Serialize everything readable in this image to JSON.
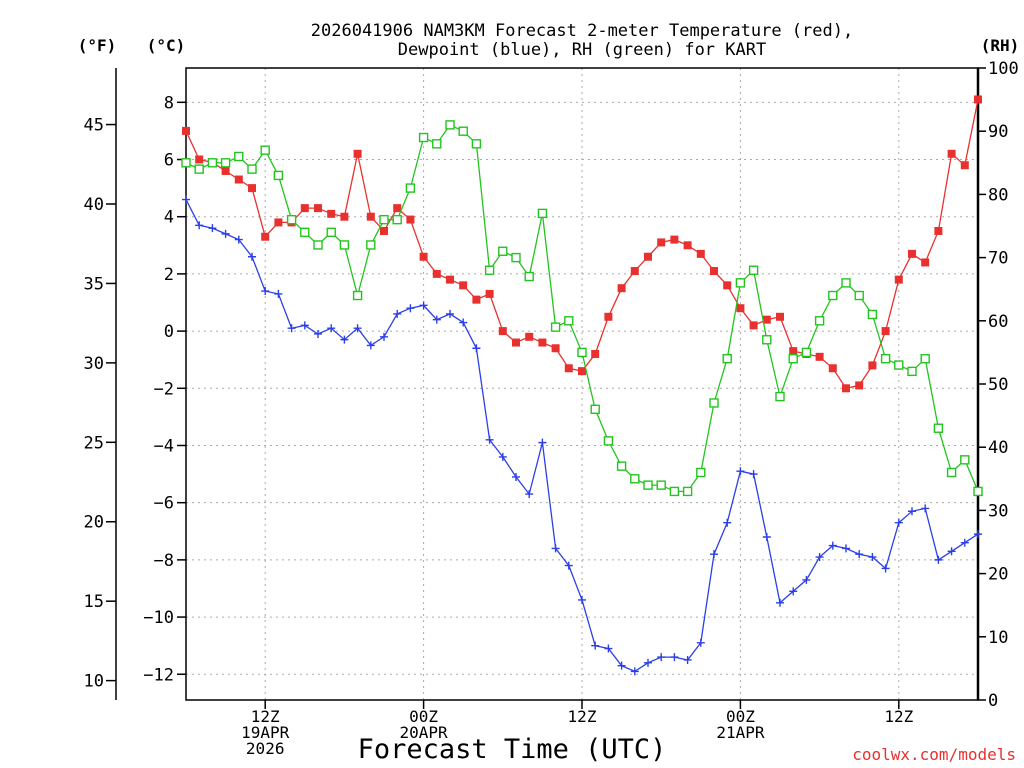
{
  "chart_data": {
    "type": "line",
    "title_line1": "2026041906 NAM3KM Forecast 2-meter Temperature (red),",
    "title_line2": "Dewpoint (blue), RH (green) for KART",
    "units": {
      "left_outer": "(°F)",
      "left_inner": "(°C)",
      "right": "(RH)"
    },
    "xlabel": "Forecast Time (UTC)",
    "credit": "coolwx.com/models",
    "x_hours": [
      0,
      1,
      2,
      3,
      4,
      5,
      6,
      7,
      8,
      9,
      10,
      11,
      12,
      13,
      14,
      15,
      16,
      17,
      18,
      19,
      20,
      21,
      22,
      23,
      24,
      25,
      26,
      27,
      28,
      29,
      30,
      31,
      32,
      33,
      34,
      35,
      36,
      37,
      38,
      39,
      40,
      41,
      42,
      43,
      44,
      45,
      46,
      47,
      48,
      49,
      50,
      51,
      52,
      53,
      54,
      55,
      56,
      57,
      58,
      59,
      60
    ],
    "xlim": [
      0,
      60
    ],
    "ylim_c": [
      -12.9,
      9.2
    ],
    "ylim_f": [
      8.78,
      48.56
    ],
    "ylim_rh": [
      0,
      100
    ],
    "x_ticks": [
      {
        "hour": 6,
        "lines": [
          "12Z",
          "19APR",
          "2026"
        ]
      },
      {
        "hour": 18,
        "lines": [
          "00Z",
          "20APR"
        ]
      },
      {
        "hour": 30,
        "lines": [
          "12Z"
        ]
      },
      {
        "hour": 42,
        "lines": [
          "00Z",
          "21APR"
        ]
      },
      {
        "hour": 54,
        "lines": [
          "12Z"
        ]
      }
    ],
    "y_ticks_c": [
      -12,
      -10,
      -8,
      -6,
      -4,
      -2,
      0,
      2,
      4,
      6,
      8
    ],
    "y_ticks_f": [
      10,
      15,
      20,
      25,
      30,
      35,
      40,
      45
    ],
    "y_ticks_rh": [
      0,
      10,
      20,
      30,
      40,
      50,
      60,
      70,
      80,
      90,
      100
    ],
    "series": [
      {
        "name": "Temperature",
        "unit": "C",
        "color": "#e8312f",
        "marker": "filled-square",
        "values": [
          7.0,
          6.0,
          5.9,
          5.6,
          5.3,
          5.0,
          3.3,
          3.8,
          3.8,
          4.3,
          4.3,
          4.1,
          4.0,
          6.2,
          4.0,
          3.5,
          4.3,
          3.9,
          2.6,
          2.0,
          1.8,
          1.6,
          1.1,
          1.3,
          0.0,
          -0.4,
          -0.2,
          -0.4,
          -0.6,
          -1.3,
          -1.4,
          -0.8,
          0.5,
          1.5,
          2.1,
          2.6,
          3.1,
          3.2,
          3.0,
          2.7,
          2.1,
          1.6,
          0.8,
          0.2,
          0.4,
          0.5,
          -0.7,
          -0.8,
          -0.9,
          -1.3,
          -2.0,
          -1.9,
          -1.2,
          0.0,
          1.8,
          2.7,
          2.4,
          3.5,
          6.2,
          5.8,
          8.1
        ]
      },
      {
        "name": "Dewpoint",
        "unit": "C",
        "color": "#2b3fe8",
        "marker": "plus",
        "values": [
          4.6,
          3.7,
          3.6,
          3.4,
          3.2,
          2.6,
          1.4,
          1.3,
          0.1,
          0.2,
          -0.1,
          0.1,
          -0.3,
          0.1,
          -0.5,
          -0.2,
          0.6,
          0.8,
          0.9,
          0.4,
          0.6,
          0.3,
          -0.6,
          -3.8,
          -4.4,
          -5.1,
          -5.7,
          -3.9,
          -7.6,
          -8.2,
          -9.4,
          -11.0,
          -11.1,
          -11.7,
          -11.9,
          -11.6,
          -11.4,
          -11.4,
          -11.5,
          -10.9,
          -7.8,
          -6.7,
          -4.9,
          -5.0,
          -7.2,
          -9.5,
          -9.1,
          -8.7,
          -7.9,
          -7.5,
          -7.6,
          -7.8,
          -7.9,
          -8.3,
          -6.7,
          -6.3,
          -6.2,
          -8.0,
          -7.7,
          -7.4,
          -7.1
        ]
      },
      {
        "name": "RH",
        "unit": "%",
        "color": "#22c51e",
        "marker": "open-square",
        "values": [
          85,
          84,
          85,
          85,
          86,
          84,
          87,
          83,
          76,
          74,
          72,
          74,
          72,
          64,
          72,
          76,
          76,
          81,
          89,
          88,
          91,
          90,
          88,
          68,
          71,
          70,
          67,
          77,
          59,
          60,
          55,
          46,
          41,
          37,
          35,
          34,
          34,
          33,
          33,
          36,
          47,
          54,
          66,
          68,
          57,
          48,
          54,
          55,
          60,
          64,
          66,
          64,
          61,
          54,
          53,
          52,
          54,
          43,
          36,
          38,
          33
        ]
      }
    ]
  }
}
